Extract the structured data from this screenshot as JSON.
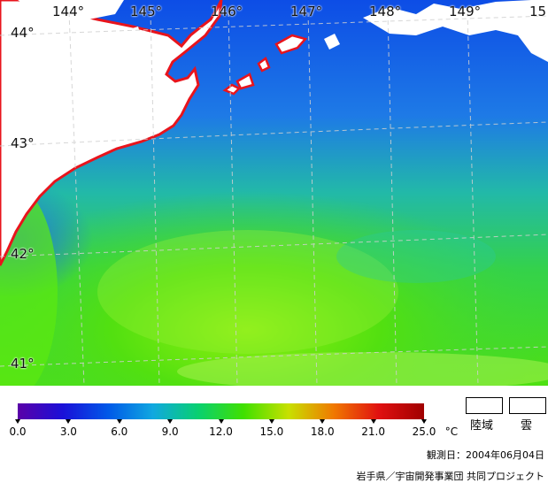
{
  "map": {
    "longitude_labels": [
      "144°",
      "145°",
      "146°",
      "147°",
      "148°",
      "149°",
      "15"
    ],
    "latitude_labels": [
      "44°",
      "43°",
      "42°",
      "41°"
    ]
  },
  "colorbar": {
    "tick_labels": [
      "0.0",
      "3.0",
      "6.0",
      "9.0",
      "12.0",
      "15.0",
      "18.0",
      "21.0",
      "25.0"
    ],
    "unit": "°C",
    "colors": [
      "#5a00a8",
      "#1a10d8",
      "#0058e8",
      "#10a8e0",
      "#08d070",
      "#40e000",
      "#c8e000",
      "#f07800",
      "#e01010",
      "#a00000"
    ]
  },
  "key": {
    "land_label": "陸域",
    "cloud_label": "雲"
  },
  "footer": {
    "date": "観測日：2004年06月04日",
    "credit": "岩手県／宇宙開発事業団 共同プロジェクト"
  }
}
